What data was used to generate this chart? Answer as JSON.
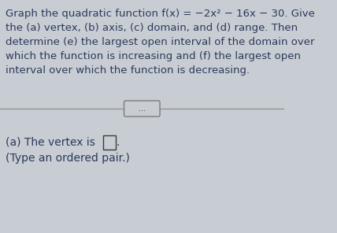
{
  "background_color": "#c8cdd4",
  "text_color": "#2b3a5a",
  "font_size_body": 9.5,
  "font_size_answer": 10.0,
  "lines": [
    "Graph the quadratic function f(x) = −2x² − 16x − 30. Give",
    "the (a) vertex, (b) axis, (c) domain, and (d) range. Then",
    "determine (e) the largest open interval of the domain over",
    "which the function is increasing and (f) the largest open",
    "interval over which the function is decreasing."
  ],
  "divider_dots": "...",
  "answer_line1": "(a) The vertex is",
  "answer_line2": "(Type an ordered pair.)",
  "divider_color": "#8a8a8a",
  "box_border_color": "#3a3a3a",
  "button_bg": "#c8cdd4",
  "button_border": "#7a7a7a"
}
